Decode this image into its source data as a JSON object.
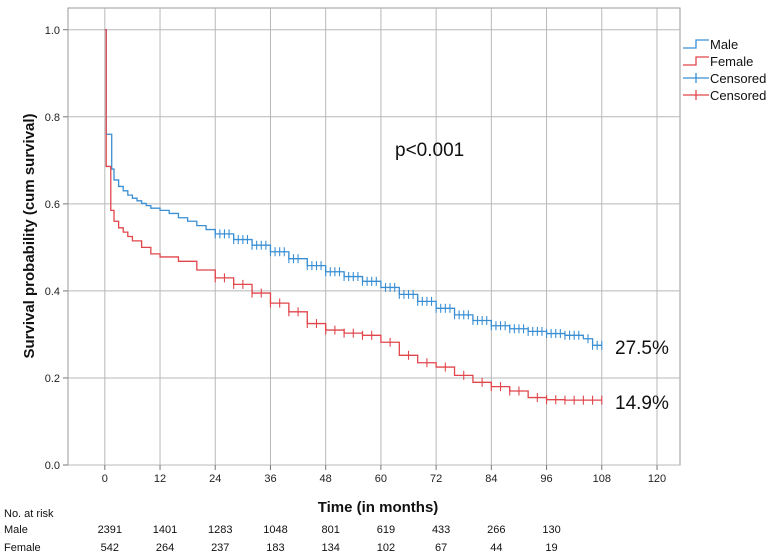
{
  "chart_data": {
    "type": "line",
    "subtype": "kaplan-meier",
    "xlabel": "Time (in months)",
    "ylabel": "Survival probability (cum survival)",
    "xlim": [
      -8,
      125
    ],
    "ylim": [
      0,
      1.05
    ],
    "x_ticks": [
      0,
      12,
      24,
      36,
      48,
      60,
      72,
      84,
      96,
      108,
      120
    ],
    "y_ticks": [
      "0.0",
      "0.2",
      "0.4",
      "0.6",
      "0.8",
      "1.0"
    ],
    "grid": true,
    "legend_position": "top-right",
    "legend": [
      {
        "label": "Male",
        "kind": "step",
        "color": "#3a8fd4"
      },
      {
        "label": "Female",
        "kind": "step",
        "color": "#e0464b"
      },
      {
        "label": "Censored",
        "kind": "censor",
        "color": "#3a8fd4"
      },
      {
        "label": "Censored",
        "kind": "censor",
        "color": "#e0464b"
      }
    ],
    "series": [
      {
        "name": "Male",
        "color": "#3a8fd4",
        "x": [
          0,
          0.3,
          0.5,
          1.5,
          2,
          3,
          4,
          5,
          6,
          7,
          8,
          9,
          10,
          12,
          14,
          16,
          18,
          20,
          22,
          24,
          28,
          32,
          36,
          40,
          44,
          48,
          52,
          56,
          60,
          64,
          68,
          72,
          76,
          80,
          84,
          88,
          92,
          96,
          100,
          104,
          106,
          108
        ],
        "y": [
          1.0,
          0.76,
          0.76,
          0.68,
          0.655,
          0.64,
          0.63,
          0.62,
          0.613,
          0.607,
          0.601,
          0.596,
          0.59,
          0.585,
          0.578,
          0.568,
          0.56,
          0.55,
          0.541,
          0.531,
          0.518,
          0.505,
          0.49,
          0.474,
          0.458,
          0.444,
          0.433,
          0.422,
          0.408,
          0.392,
          0.376,
          0.36,
          0.345,
          0.332,
          0.32,
          0.313,
          0.307,
          0.302,
          0.298,
          0.29,
          0.275,
          0.275
        ],
        "censored_x": [
          24,
          25,
          26,
          27,
          28,
          29,
          30,
          31,
          32,
          33,
          34,
          35,
          36,
          37,
          38,
          39,
          40,
          41,
          42,
          44,
          45,
          46,
          47,
          48,
          49,
          50,
          51,
          52,
          53,
          54,
          55,
          56,
          57,
          58,
          59,
          61,
          62,
          63,
          64,
          65,
          66,
          67,
          68,
          69,
          70,
          71,
          72,
          73,
          74,
          75,
          76,
          77,
          78,
          79,
          80,
          81,
          82,
          83,
          84,
          85,
          86,
          87,
          88,
          89,
          90,
          91,
          92,
          93,
          94,
          95,
          96,
          97,
          98,
          99,
          100,
          101,
          102,
          103,
          105,
          106,
          107,
          108
        ]
      },
      {
        "name": "Female",
        "color": "#e0464b",
        "x": [
          0,
          0.3,
          0.7,
          1.3,
          2,
          3,
          4,
          5,
          6,
          8,
          10,
          12,
          16,
          20,
          24,
          28,
          32,
          36,
          40,
          44,
          48,
          52,
          56,
          60,
          64,
          68,
          72,
          76,
          80,
          84,
          88,
          92,
          96,
          100,
          104,
          108
        ],
        "y": [
          1.0,
          0.686,
          0.686,
          0.585,
          0.56,
          0.545,
          0.535,
          0.525,
          0.515,
          0.5,
          0.485,
          0.478,
          0.468,
          0.448,
          0.43,
          0.415,
          0.395,
          0.372,
          0.352,
          0.325,
          0.31,
          0.303,
          0.298,
          0.282,
          0.252,
          0.235,
          0.225,
          0.206,
          0.19,
          0.18,
          0.17,
          0.155,
          0.15,
          0.149,
          0.149,
          0.149
        ],
        "censored_x": [
          24,
          26,
          28,
          30,
          32,
          34,
          36,
          38,
          40,
          42,
          44,
          46,
          48,
          50,
          52,
          54,
          56,
          58,
          62,
          66,
          70,
          74,
          78,
          82,
          84,
          86,
          88,
          90,
          94,
          96,
          98,
          100,
          102,
          104,
          106,
          108
        ]
      }
    ],
    "annotations": {
      "p_value": "p<0.001",
      "male_end": "27.5%",
      "female_end": "14.9%"
    },
    "risk_table": {
      "title": "No. at risk",
      "times": [
        0,
        12,
        24,
        36,
        48,
        60,
        72,
        84,
        96
      ],
      "rows": [
        {
          "label": "Male",
          "values": [
            "2391",
            "1401",
            "1283",
            "1048",
            "801",
            "619",
            "433",
            "266",
            "130"
          ]
        },
        {
          "label": "Female",
          "values": [
            "542",
            "264",
            "237",
            "183",
            "134",
            "102",
            "67",
            "44",
            "19"
          ]
        }
      ]
    }
  }
}
